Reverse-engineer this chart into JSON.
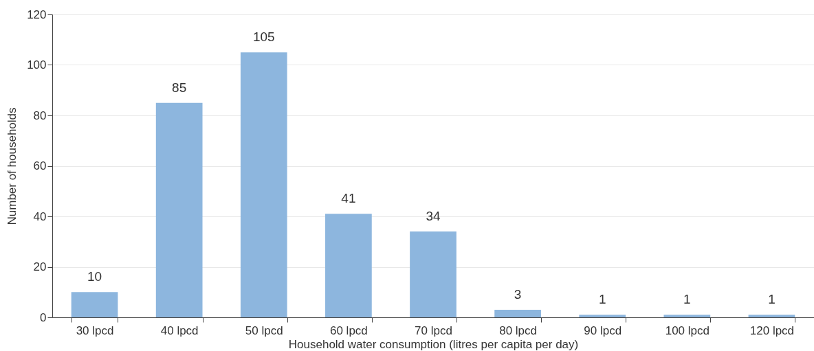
{
  "chart_data": {
    "type": "bar",
    "xlabel": "Household water consumption (litres per capita per day)",
    "ylabel": "Number of households",
    "categories": [
      "30 lpcd",
      "40 lpcd",
      "50 lpcd",
      "60 lpcd",
      "70 lpcd",
      "80 lpcd",
      "90 lpcd",
      "100 lpcd",
      "120 lpcd"
    ],
    "values": [
      10,
      85,
      105,
      41,
      34,
      3,
      1,
      1,
      1
    ],
    "color": "#8db6de",
    "ylim": [
      0,
      120
    ],
    "yticks": [
      0,
      20,
      40,
      60,
      80,
      100,
      120
    ],
    "grid": "y",
    "data_labels": true
  }
}
